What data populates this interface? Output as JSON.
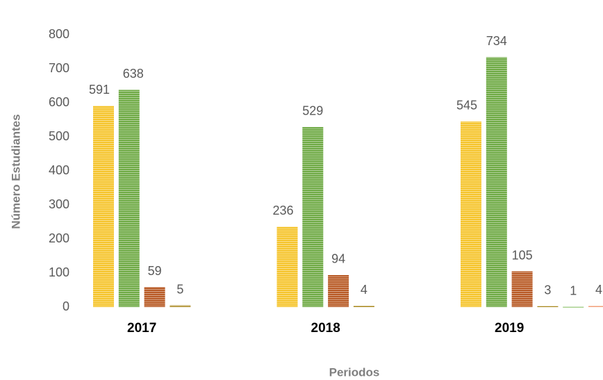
{
  "chart_data": {
    "type": "bar",
    "y_label": "Número Estudiantes",
    "x_label": "Periodos",
    "categories": [
      "2017",
      "2018",
      "2019"
    ],
    "series": [
      {
        "color": "#f5c42c",
        "values": [
          591,
          236,
          545
        ]
      },
      {
        "color": "#6faa45",
        "values": [
          638,
          529,
          734
        ]
      },
      {
        "color": "#b85a25",
        "values": [
          59,
          94,
          105
        ]
      },
      {
        "color": "#a8861c",
        "values": [
          5,
          4,
          3
        ]
      },
      {
        "color": "#a9d18e",
        "values": [
          null,
          null,
          1
        ]
      },
      {
        "color": "#f2a07a",
        "values": [
          null,
          null,
          4
        ]
      }
    ],
    "ylim": [
      0,
      800
    ],
    "yticks": [
      0,
      100,
      200,
      300,
      400,
      500,
      600,
      700,
      800
    ]
  }
}
